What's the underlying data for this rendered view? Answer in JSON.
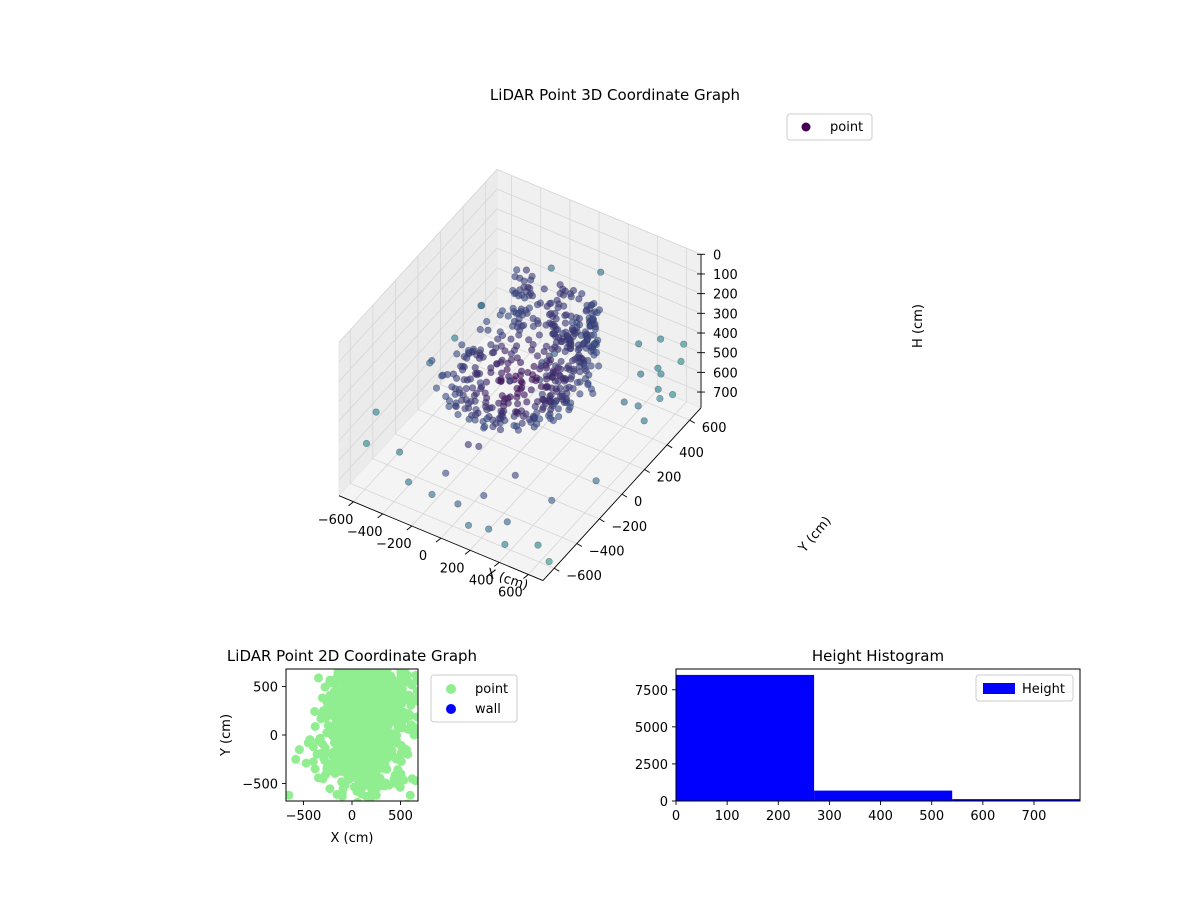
{
  "chart_data": [
    {
      "type": "scatter3d",
      "title": "LiDAR Point 3D Coordinate Graph",
      "xlabel": "X (cm)",
      "ylabel": "Y (cm)",
      "zlabel": "H (cm)",
      "xlim": [
        -700,
        700
      ],
      "ylim": [
        -700,
        700
      ],
      "zlim": [
        0,
        780
      ],
      "z_inverted": true,
      "x_ticks": [
        -600,
        -400,
        -200,
        0,
        200,
        400,
        600
      ],
      "y_ticks": [
        -600,
        -400,
        -200,
        0,
        200,
        400,
        600
      ],
      "z_ticks": [
        0,
        100,
        200,
        300,
        400,
        500,
        600,
        700
      ],
      "legend": [
        "point"
      ],
      "legend_position": "upper-right",
      "colormap": "viridis",
      "grid": true,
      "series": [
        {
          "name": "point",
          "color": "#440154",
          "shapes": [
            {
              "kind": "ring",
              "cx": 0,
              "cy": 0,
              "r": 350,
              "z": 380,
              "n": 70
            },
            {
              "kind": "ring",
              "cx": 0,
              "cy": 0,
              "r": 300,
              "z": 400,
              "n": 60
            },
            {
              "kind": "ring",
              "cx": 0,
              "cy": 0,
              "r": 420,
              "z": 360,
              "n": 60
            },
            {
              "kind": "wall",
              "x0": -300,
              "y0": 300,
              "x1": 300,
              "y1": 300,
              "z0": 120,
              "z1": 400,
              "n": 90
            },
            {
              "kind": "wall",
              "x0": 300,
              "y0": 300,
              "x1": 300,
              "y1": -200,
              "z0": 100,
              "z1": 380,
              "n": 80
            },
            {
              "kind": "disk",
              "cx": 0,
              "cy": 0,
              "r": 260,
              "z": 420,
              "n": 110
            }
          ],
          "points": [
            [
              -650,
              500,
              550
            ],
            [
              -600,
              -500,
              450
            ],
            [
              -550,
              -650,
              500
            ],
            [
              -500,
              300,
              380
            ],
            [
              -450,
              -200,
              330
            ],
            [
              -400,
              -550,
              560
            ],
            [
              -350,
              100,
              600
            ],
            [
              -300,
              -600,
              650
            ],
            [
              -250,
              600,
              300
            ],
            [
              -200,
              -400,
              700
            ],
            [
              -150,
              500,
              640
            ],
            [
              -100,
              -650,
              620
            ],
            [
              -50,
              -300,
              580
            ],
            [
              0,
              -550,
              700
            ],
            [
              50,
              650,
              260
            ],
            [
              100,
              -450,
              690
            ],
            [
              150,
              -650,
              700
            ],
            [
              200,
              400,
              420
            ],
            [
              250,
              -600,
              720
            ],
            [
              300,
              -500,
              730
            ],
            [
              350,
              600,
              500
            ],
            [
              400,
              -650,
              720
            ],
            [
              450,
              -300,
              700
            ],
            [
              500,
              600,
              430
            ],
            [
              550,
              -550,
              740
            ],
            [
              600,
              -100,
              680
            ],
            [
              650,
              400,
              560
            ],
            [
              680,
              -620,
              740
            ],
            [
              620,
              650,
              450
            ],
            [
              560,
              200,
              480
            ],
            [
              -620,
              0,
              520
            ],
            [
              -680,
              300,
              600
            ],
            [
              480,
              450,
              520
            ],
            [
              520,
              550,
              540
            ],
            [
              580,
              500,
              520
            ],
            [
              640,
              600,
              500
            ],
            [
              600,
              450,
              560
            ],
            [
              660,
              500,
              600
            ],
            [
              540,
              350,
              600
            ],
            [
              620,
              300,
              620
            ],
            [
              -100,
              200,
              100
            ],
            [
              -150,
              250,
              60
            ],
            [
              100,
              250,
              80
            ],
            [
              150,
              280,
              90
            ],
            [
              -300,
              300,
              700
            ],
            [
              200,
              -300,
              650
            ],
            [
              -200,
              -200,
              680
            ],
            [
              0,
              200,
              690
            ]
          ]
        }
      ]
    },
    {
      "type": "scatter",
      "title": "LiDAR Point 2D Coordinate Graph",
      "xlabel": "X (cm)",
      "ylabel": "Y (cm)",
      "xlim": [
        -680,
        680
      ],
      "ylim": [
        -680,
        680
      ],
      "x_ticks": [
        -500,
        0,
        500
      ],
      "y_ticks": [
        -500,
        0,
        500
      ],
      "legend": [
        "point",
        "wall"
      ],
      "legend_position": "outside-right",
      "series": [
        {
          "name": "point",
          "color": "#90EE90",
          "clusters": [
            {
              "cx": 100,
              "cy": 150,
              "sx": 170,
              "sy": 260,
              "n": 900
            },
            {
              "cx": 250,
              "cy": 400,
              "sx": 200,
              "sy": 180,
              "n": 320
            },
            {
              "cx": 150,
              "cy": -300,
              "sx": 230,
              "sy": 170,
              "n": 180
            }
          ],
          "points": [
            [
              -650,
              -620
            ],
            [
              -580,
              -250
            ],
            [
              -450,
              -80
            ],
            [
              -380,
              -350
            ],
            [
              -300,
              -450
            ],
            [
              -100,
              -600
            ],
            [
              50,
              -580
            ],
            [
              250,
              -620
            ],
            [
              600,
              -620
            ],
            [
              620,
              -450
            ],
            [
              -200,
              200
            ],
            [
              -150,
              580
            ],
            [
              -250,
              300
            ],
            [
              640,
              0
            ],
            [
              600,
              200
            ]
          ]
        },
        {
          "name": "wall",
          "color": "#0000FF",
          "points": []
        }
      ]
    },
    {
      "type": "bar",
      "title": "Height Histogram",
      "xlim": [
        0,
        790
      ],
      "ylim": [
        0,
        8900
      ],
      "x_ticks": [
        0,
        100,
        200,
        300,
        400,
        500,
        600,
        700
      ],
      "y_ticks": [
        0,
        2500,
        5000,
        7500
      ],
      "legend": [
        "Height"
      ],
      "legend_position": "upper-right",
      "series": [
        {
          "name": "Height",
          "color": "#0000FF",
          "bins": [
            [
              0,
              270,
              8500
            ],
            [
              270,
              540,
              700
            ],
            [
              540,
              790,
              130
            ]
          ]
        }
      ]
    }
  ]
}
